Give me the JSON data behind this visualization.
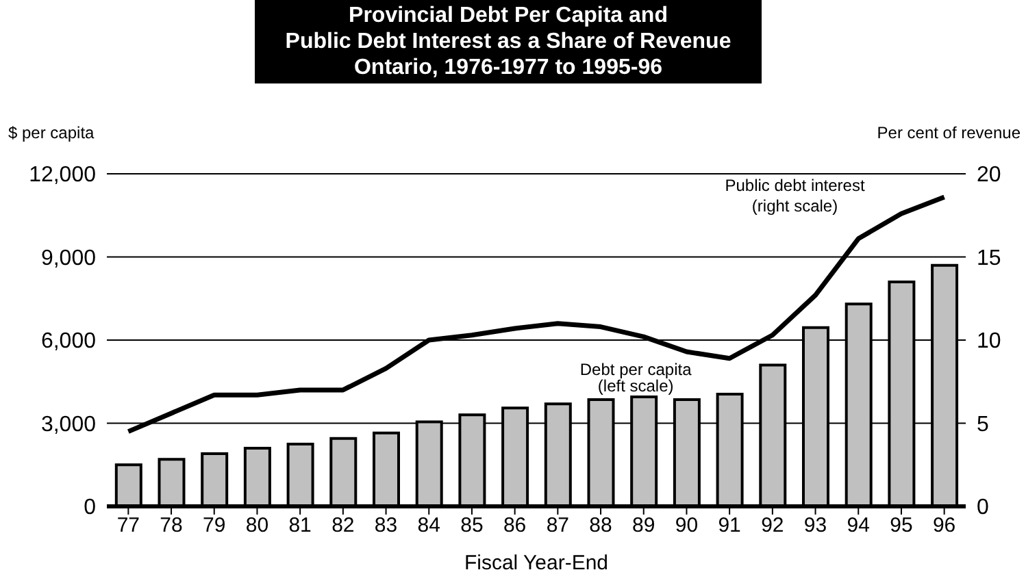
{
  "chart_data": {
    "type": "bar",
    "title": "Provincial Debt Per Capita and\nPublic Debt Interest as a Share of Revenue\nOntario, 1976-1977 to 1995-96",
    "xlabel": "Fiscal Year-End",
    "ylabel": "$ per capita",
    "y2label": "Per cent of revenue",
    "categories": [
      "77",
      "78",
      "79",
      "80",
      "81",
      "82",
      "83",
      "84",
      "85",
      "86",
      "87",
      "88",
      "89",
      "90",
      "91",
      "92",
      "93",
      "94",
      "95",
      "96"
    ],
    "series": [
      {
        "name": "Debt per capita\n(left scale)",
        "type": "bar",
        "color": "#c0c0c0",
        "values": [
          1500,
          1700,
          1900,
          2100,
          2250,
          2450,
          2650,
          3050,
          3300,
          3550,
          3700,
          3850,
          3950,
          3850,
          4050,
          5100,
          6450,
          7300,
          8100,
          8700
        ]
      },
      {
        "name": "Public debt interest\n(right scale)",
        "type": "line",
        "axis": "y2",
        "color": "#000000",
        "values": [
          4.5,
          5.6,
          6.7,
          6.7,
          7.0,
          7.0,
          8.3,
          10.0,
          10.3,
          10.7,
          11.0,
          10.8,
          10.2,
          9.3,
          8.9,
          10.3,
          12.7,
          16.1,
          17.6,
          18.6
        ]
      }
    ],
    "ylim": [
      0,
      12000
    ],
    "yticks": [
      {
        "value": 0,
        "label": "0"
      },
      {
        "value": 3000,
        "label": "3,000"
      },
      {
        "value": 6000,
        "label": "6,000"
      },
      {
        "value": 9000,
        "label": "9,000"
      },
      {
        "value": 12000,
        "label": "12,000"
      }
    ],
    "y2lim": [
      0,
      20
    ],
    "y2ticks": [
      0,
      5,
      10,
      15,
      20
    ],
    "grid": "y",
    "marker": "none",
    "line_style": "solid"
  }
}
